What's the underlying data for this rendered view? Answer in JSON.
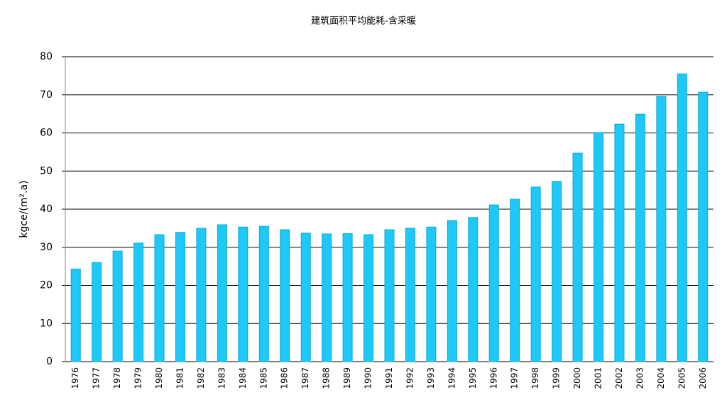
{
  "chart_data": {
    "type": "bar",
    "title": "建筑面积平均能耗-含采暖",
    "y_label": "kgce/(m².a)",
    "categories": [
      "1976",
      "1977",
      "1978",
      "1979",
      "1980",
      "1981",
      "1982",
      "1983",
      "1984",
      "1985",
      "1986",
      "1987",
      "1988",
      "1989",
      "1990",
      "1991",
      "1992",
      "1993",
      "1994",
      "1995",
      "1996",
      "1997",
      "1998",
      "1999",
      "2000",
      "2001",
      "2002",
      "2003",
      "2004",
      "2005",
      "2006"
    ],
    "values": [
      24.3,
      26.0,
      29.0,
      31.1,
      33.3,
      33.9,
      35.0,
      35.9,
      35.3,
      35.5,
      34.6,
      33.7,
      33.5,
      33.6,
      33.3,
      34.6,
      35.0,
      35.3,
      37.0,
      37.8,
      41.1,
      42.6,
      45.8,
      47.3,
      54.7,
      60.1,
      62.3,
      64.9,
      69.6,
      75.5,
      70.7
    ],
    "color": "#1ec8f8",
    "ylim": [
      0,
      80
    ],
    "yticks": [
      0,
      10,
      20,
      30,
      40,
      50,
      60,
      70,
      80
    ],
    "grid": true
  }
}
